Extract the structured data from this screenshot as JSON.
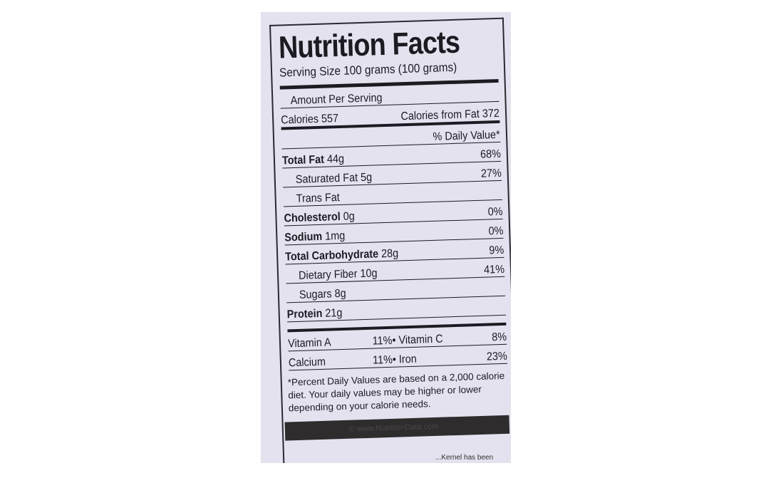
{
  "title": "Nutrition Facts",
  "serving": "Serving Size 100 grams (100 grams)",
  "amount_per_serving": "Amount Per Serving",
  "calories": "Calories 557",
  "calories_from_fat": "Calories from Fat 372",
  "daily_value_header": "% Daily Value*",
  "nutrients": [
    {
      "name": "Total Fat",
      "amount": "44g",
      "dv": "68%",
      "bold": true
    },
    {
      "name": "Saturated Fat",
      "amount": "5g",
      "dv": "27%",
      "bold": false
    },
    {
      "name": "Trans Fat",
      "amount": "",
      "dv": "",
      "bold": false
    },
    {
      "name": "Cholesterol",
      "amount": "0g",
      "dv": "0%",
      "bold": true
    },
    {
      "name": "Sodium",
      "amount": "1mg",
      "dv": "0%",
      "bold": true
    },
    {
      "name": "Total Carbohydrate",
      "amount": "28g",
      "dv": "9%",
      "bold": true
    },
    {
      "name": "Dietary Fiber",
      "amount": "10g",
      "dv": "41%",
      "bold": false
    },
    {
      "name": "Sugars",
      "amount": "8g",
      "dv": "",
      "bold": false
    },
    {
      "name": "Protein",
      "amount": "21g",
      "dv": "",
      "bold": true
    }
  ],
  "vitamins": [
    {
      "left": "Vitamin A",
      "left_dv": "11%•",
      "right": "Vitamin C",
      "right_dv": "8%"
    },
    {
      "left": "Calcium",
      "left_dv": "11%•",
      "right": "Iron",
      "right_dv": "23%"
    }
  ],
  "footnote": "*Percent Daily Values are based on a 2,000 calorie diet. Your daily values may be higher or lower depending on your calorie needs.",
  "copyright": "© www.NutritionData.com",
  "bottom_text": "...Kernel has been"
}
